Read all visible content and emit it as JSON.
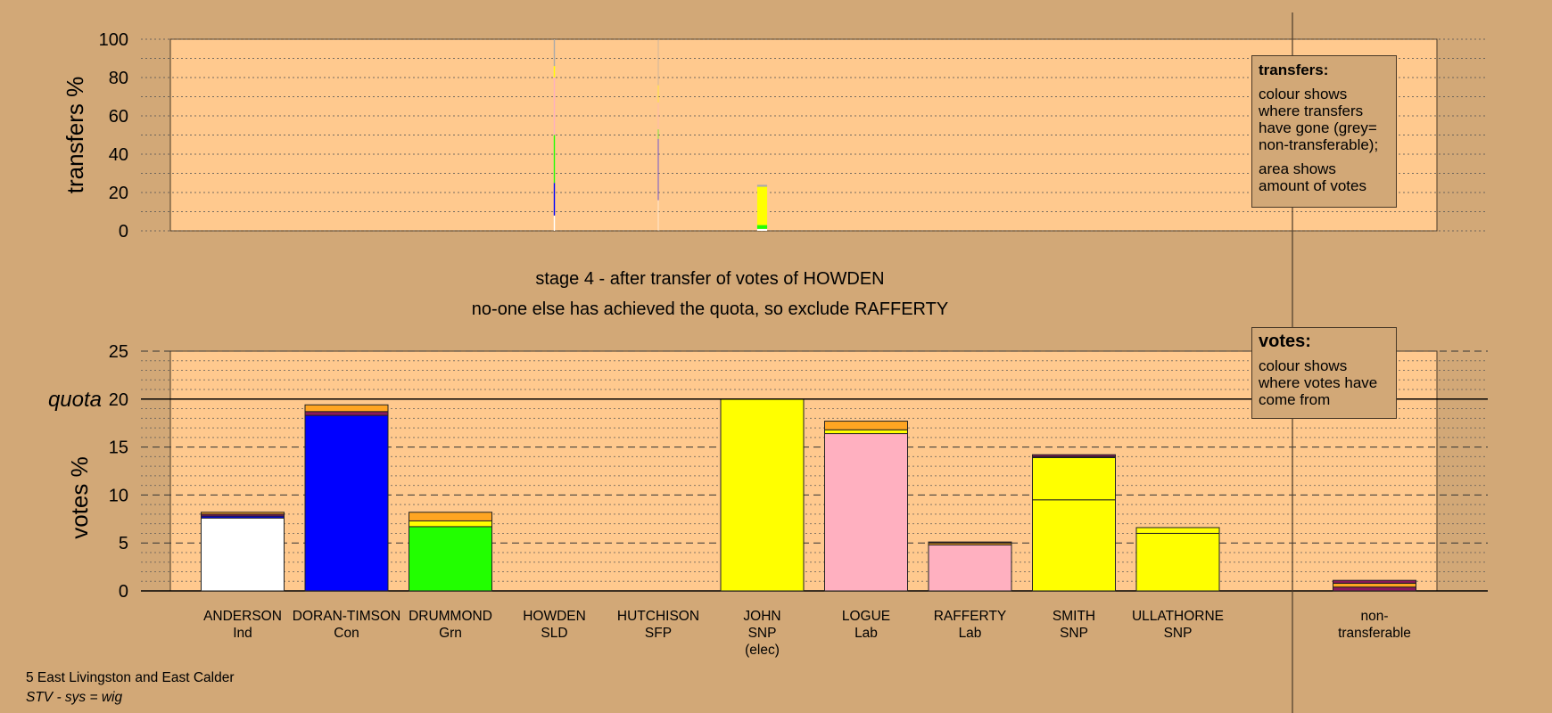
{
  "stage": {
    "line1": "stage 4 - after transfer of votes of HOWDEN",
    "line2": "no-one else has achieved the quota, so exclude RAFFERTY"
  },
  "legend_transfers": {
    "title": "transfers:",
    "p1": "colour shows where transfers have gone (grey= non-transferable);",
    "p2": "area shows amount of votes"
  },
  "legend_votes": {
    "title": "votes:",
    "p1": "colour shows where votes have come from"
  },
  "footer": {
    "ward": "5 East Livingston and East Calder",
    "system": "STV - sys = wig"
  },
  "colors": {
    "background": "#D2A877",
    "plot_bg": "#FFC98E",
    "Ind": "#FFFFFF",
    "Con": "#0000FF",
    "Grn": "#22FF00",
    "SLD": "#FFA522",
    "SFP": "#8B1A5A",
    "SNP": "#FFFF00",
    "Lab": "#FFB0C0",
    "nontransferable": "#AAAAAA"
  },
  "chart_data": [
    {
      "type": "bar",
      "stacked": true,
      "name": "transfers",
      "ylabel": "transfers %",
      "ylim": [
        0,
        100
      ],
      "yticks": [
        0,
        20,
        40,
        60,
        80,
        100
      ],
      "grid": true,
      "columns": [
        {
          "from_index": 3,
          "width_pct": 1.5,
          "segments": [
            {
              "to": "Ind",
              "value": 8
            },
            {
              "to": "Con",
              "value": 17
            },
            {
              "to": "Grn",
              "value": 25
            },
            {
              "to": "Lab",
              "value": 30
            },
            {
              "to": "SNP",
              "value": 6
            },
            {
              "to": "nontransferable",
              "value": 14
            }
          ]
        },
        {
          "from_index": 4,
          "width_pct": 0.6,
          "segments": [
            {
              "to": "Ind",
              "value": 16
            },
            {
              "to": "Con",
              "value": 32
            },
            {
              "to": "Grn",
              "value": 5
            },
            {
              "to": "Lab",
              "value": 14
            },
            {
              "to": "SNP",
              "value": 9
            },
            {
              "to": "nontransferable",
              "value": 24
            }
          ]
        },
        {
          "from_index": 5,
          "width_pct": 12,
          "segments": [
            {
              "to": "Ind",
              "value": 1
            },
            {
              "to": "Grn",
              "value": 2
            },
            {
              "to": "SNP",
              "value": 20
            },
            {
              "to": "nontransferable",
              "value": 1
            }
          ]
        }
      ]
    },
    {
      "type": "bar",
      "stacked": true,
      "name": "votes",
      "ylabel": "votes %",
      "ylim": [
        0,
        25
      ],
      "yticks": [
        0,
        5,
        10,
        15,
        20,
        25
      ],
      "quota": 20,
      "quota_label": "quota",
      "grid": true,
      "candidates": [
        {
          "name": "ANDERSON",
          "party": "Ind",
          "extra": "",
          "segments": [
            {
              "from": "Ind",
              "value": 7.6
            },
            {
              "from": "Con",
              "value": 0.2
            },
            {
              "from": "SFP",
              "value": 0.2
            },
            {
              "from": "SLD",
              "value": 0.2
            }
          ]
        },
        {
          "name": "DORAN-TIMSON",
          "party": "Con",
          "extra": "",
          "segments": [
            {
              "from": "Con",
              "value": 18.3
            },
            {
              "from": "SFP",
              "value": 0.4
            },
            {
              "from": "SLD",
              "value": 0.7
            }
          ]
        },
        {
          "name": "DRUMMOND",
          "party": "Grn",
          "extra": "",
          "segments": [
            {
              "from": "Grn",
              "value": 6.7
            },
            {
              "from": "SNP",
              "value": 0.6
            },
            {
              "from": "SLD",
              "value": 0.9
            }
          ]
        },
        {
          "name": "HOWDEN",
          "party": "SLD",
          "extra": "",
          "segments": []
        },
        {
          "name": "HUTCHISON",
          "party": "SFP",
          "extra": "",
          "segments": []
        },
        {
          "name": "JOHN",
          "party": "SNP",
          "extra": "(elec)",
          "segments": [
            {
              "from": "SNP",
              "value": 20
            }
          ]
        },
        {
          "name": "LOGUE",
          "party": "Lab",
          "extra": "",
          "segments": [
            {
              "from": "Lab",
              "value": 16.4
            },
            {
              "from": "SNP",
              "value": 0.4
            },
            {
              "from": "SLD",
              "value": 0.9
            }
          ]
        },
        {
          "name": "RAFFERTY",
          "party": "Lab",
          "extra": "",
          "segments": [
            {
              "from": "Lab",
              "value": 4.8
            },
            {
              "from": "SLD",
              "value": 0.2
            },
            {
              "from": "SFP",
              "value": 0.1
            }
          ]
        },
        {
          "name": "SMITH",
          "party": "SNP",
          "extra": "",
          "segments": [
            {
              "from": "SNP",
              "value": 9.5
            },
            {
              "from": "SNP",
              "value": 4.4
            },
            {
              "from": "SLD",
              "value": 0.1
            },
            {
              "from": "SFP",
              "value": 0.2
            }
          ]
        },
        {
          "name": "ULLATHORNE",
          "party": "SNP",
          "extra": "",
          "segments": [
            {
              "from": "SNP",
              "value": 6.0
            },
            {
              "from": "SNP",
              "value": 0.6
            }
          ]
        },
        {
          "name": "non-",
          "party": "transferable",
          "extra": "",
          "nontransferable": true,
          "segments": [
            {
              "from": "SFP",
              "value": 0.4
            },
            {
              "from": "SLD",
              "value": 0.4
            },
            {
              "from": "SFP",
              "value": 0.3
            }
          ]
        }
      ]
    }
  ]
}
